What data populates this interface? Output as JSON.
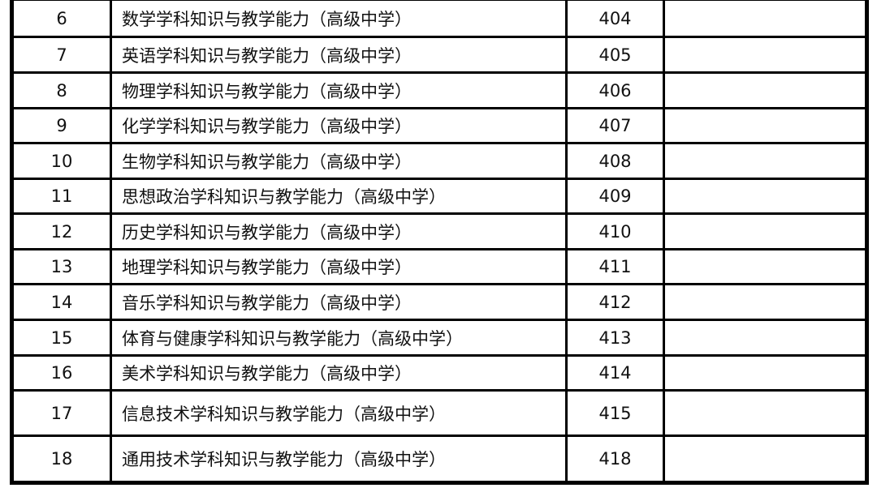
{
  "rows": [
    {
      "no": "6",
      "name": "数学学科知识与教学能力（高级中学）",
      "code": "404",
      "note": ""
    },
    {
      "no": "7",
      "name": "英语学科知识与教学能力（高级中学）",
      "code": "405",
      "note": ""
    },
    {
      "no": "8",
      "name": "物理学科知识与教学能力（高级中学）",
      "code": "406",
      "note": ""
    },
    {
      "no": "9",
      "name": "化学学科知识与教学能力（高级中学）",
      "code": "407",
      "note": ""
    },
    {
      "no": "10",
      "name": "生物学科知识与教学能力（高级中学）",
      "code": "408",
      "note": ""
    },
    {
      "no": "11",
      "name": "思想政治学科知识与教学能力（高级中学）",
      "code": "409",
      "note": ""
    },
    {
      "no": "12",
      "name": "历史学科知识与教学能力（高级中学）",
      "code": "410",
      "note": ""
    },
    {
      "no": "13",
      "name": "地理学科知识与教学能力（高级中学）",
      "code": "411",
      "note": ""
    },
    {
      "no": "14",
      "name": "音乐学科知识与教学能力（高级中学）",
      "code": "412",
      "note": ""
    },
    {
      "no": "15",
      "name": "体育与健康学科知识与教学能力（高级中学）",
      "code": "413",
      "note": ""
    },
    {
      "no": "16",
      "name": "美术学科知识与教学能力（高级中学）",
      "code": "414",
      "note": ""
    },
    {
      "no": "17",
      "name": "信息技术学科知识与教学能力（高级中学）",
      "code": "415",
      "note": ""
    },
    {
      "no": "18",
      "name": "通用技术学科知识与教学能力（高级中学）",
      "code": "418",
      "note": ""
    }
  ]
}
